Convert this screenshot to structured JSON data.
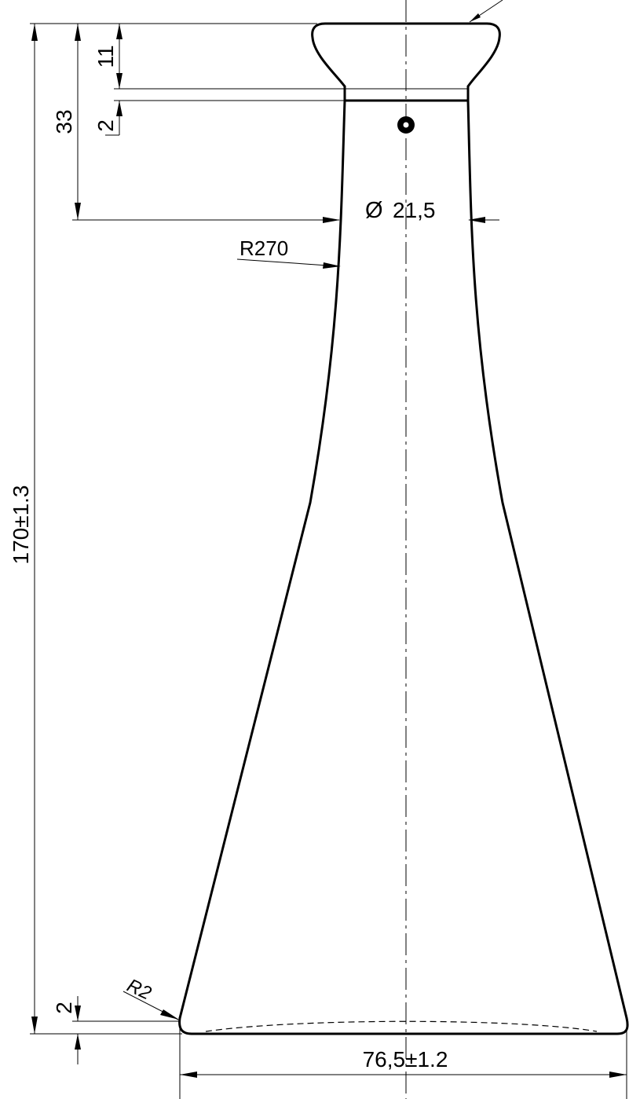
{
  "drawing": {
    "dimensions": {
      "overall_height": "170",
      "overall_height_tolerance": "±1.3",
      "rim_height": "11",
      "neck_step": "2",
      "neck_length": "33",
      "neck_diameter_symbol": "Ø",
      "neck_diameter": "21,5",
      "neck_radius": "R270",
      "base_step": "2",
      "base_radius": "R2",
      "base_width": "76,5",
      "base_width_tolerance": "±1.2"
    }
  }
}
